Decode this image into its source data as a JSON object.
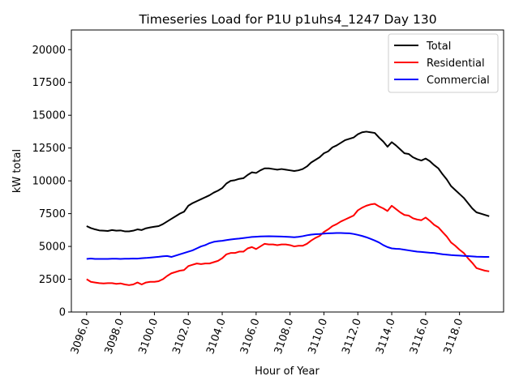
{
  "chart_data": {
    "type": "line",
    "title": "Timeseries Load for P1U p1uhs4_1247  Day 130",
    "xlabel": "Hour of Year",
    "ylabel": "kW total",
    "xlim": [
      3095.1,
      3120.6
    ],
    "ylim": [
      0,
      21500
    ],
    "xticks": [
      3096,
      3098,
      3100,
      3102,
      3104,
      3106,
      3108,
      3110,
      3112,
      3114,
      3116,
      3118
    ],
    "xtick_labels": [
      "3096.0",
      "3098.0",
      "3100.0",
      "3102.0",
      "3104.0",
      "3106.0",
      "3108.0",
      "3110.0",
      "3112.0",
      "3114.0",
      "3116.0",
      "3118.0"
    ],
    "yticks": [
      0,
      2500,
      5000,
      7500,
      10000,
      12500,
      15000,
      17500,
      20000
    ],
    "ytick_labels": [
      "0",
      "2500",
      "5000",
      "7500",
      "10000",
      "12500",
      "15000",
      "17500",
      "20000"
    ],
    "grid": false,
    "legend_position": "top-right",
    "x": [
      3096.0,
      3096.25,
      3096.5,
      3096.75,
      3097.0,
      3097.25,
      3097.5,
      3097.75,
      3098.0,
      3098.25,
      3098.5,
      3098.75,
      3099.0,
      3099.25,
      3099.5,
      3099.75,
      3100.0,
      3100.25,
      3100.5,
      3100.75,
      3101.0,
      3101.25,
      3101.5,
      3101.75,
      3102.0,
      3102.25,
      3102.5,
      3102.75,
      3103.0,
      3103.25,
      3103.5,
      3103.75,
      3104.0,
      3104.25,
      3104.5,
      3104.75,
      3105.0,
      3105.25,
      3105.5,
      3105.75,
      3106.0,
      3106.25,
      3106.5,
      3106.75,
      3107.0,
      3107.25,
      3107.5,
      3107.75,
      3108.0,
      3108.25,
      3108.5,
      3108.75,
      3109.0,
      3109.25,
      3109.5,
      3109.75,
      3110.0,
      3110.25,
      3110.5,
      3110.75,
      3111.0,
      3111.25,
      3111.5,
      3111.75,
      3112.0,
      3112.25,
      3112.5,
      3112.75,
      3113.0,
      3113.25,
      3113.5,
      3113.75,
      3114.0,
      3114.25,
      3114.5,
      3114.75,
      3115.0,
      3115.25,
      3115.5,
      3115.75,
      3116.0,
      3116.25,
      3116.5,
      3116.75,
      3117.0,
      3117.25,
      3117.5,
      3117.75,
      3118.0,
      3118.25,
      3118.5,
      3118.75,
      3119.0,
      3119.25,
      3119.5,
      3119.75
    ],
    "series": [
      {
        "name": "Total",
        "color": "#000000",
        "values": [
          6550,
          6400,
          6300,
          6220,
          6200,
          6180,
          6250,
          6200,
          6220,
          6150,
          6150,
          6200,
          6300,
          6250,
          6380,
          6450,
          6500,
          6550,
          6700,
          6900,
          7100,
          7300,
          7500,
          7650,
          8100,
          8300,
          8450,
          8600,
          8750,
          8900,
          9100,
          9250,
          9450,
          9800,
          10000,
          10050,
          10150,
          10200,
          10450,
          10650,
          10600,
          10800,
          10950,
          10950,
          10900,
          10850,
          10900,
          10850,
          10800,
          10750,
          10800,
          10900,
          11100,
          11400,
          11600,
          11800,
          12100,
          12250,
          12550,
          12700,
          12900,
          13100,
          13200,
          13300,
          13550,
          13700,
          13750,
          13700,
          13650,
          13300,
          13000,
          12600,
          12950,
          12700,
          12400,
          12100,
          12050,
          11800,
          11650,
          11550,
          11700,
          11500,
          11200,
          10950,
          10500,
          10100,
          9600,
          9300,
          9000,
          8700,
          8300,
          7900,
          7600,
          7500,
          7400,
          7300
        ]
      },
      {
        "name": "Residential",
        "color": "#ff0000",
        "values": [
          2500,
          2300,
          2250,
          2200,
          2180,
          2200,
          2200,
          2150,
          2180,
          2100,
          2050,
          2100,
          2250,
          2100,
          2250,
          2300,
          2300,
          2350,
          2500,
          2750,
          2950,
          3050,
          3150,
          3200,
          3500,
          3600,
          3700,
          3650,
          3700,
          3700,
          3800,
          3900,
          4100,
          4400,
          4500,
          4500,
          4600,
          4600,
          4850,
          4950,
          4800,
          5000,
          5200,
          5150,
          5150,
          5100,
          5150,
          5150,
          5100,
          5000,
          5050,
          5050,
          5200,
          5450,
          5650,
          5800,
          6100,
          6300,
          6550,
          6700,
          6900,
          7050,
          7200,
          7350,
          7750,
          7950,
          8100,
          8200,
          8250,
          8050,
          7900,
          7700,
          8100,
          7850,
          7600,
          7400,
          7350,
          7150,
          7050,
          7000,
          7200,
          6950,
          6650,
          6450,
          6100,
          5750,
          5300,
          5050,
          4750,
          4500,
          4100,
          3750,
          3350,
          3250,
          3150,
          3100
        ]
      },
      {
        "name": "Commercial",
        "color": "#0000ff",
        "values": [
          4050,
          4080,
          4050,
          4050,
          4050,
          4050,
          4060,
          4060,
          4050,
          4060,
          4060,
          4080,
          4070,
          4100,
          4120,
          4150,
          4180,
          4210,
          4250,
          4270,
          4200,
          4300,
          4400,
          4500,
          4600,
          4700,
          4850,
          5000,
          5100,
          5250,
          5350,
          5400,
          5430,
          5480,
          5530,
          5570,
          5600,
          5640,
          5680,
          5720,
          5740,
          5760,
          5770,
          5780,
          5770,
          5760,
          5750,
          5740,
          5720,
          5700,
          5730,
          5780,
          5850,
          5900,
          5930,
          5950,
          5980,
          6000,
          6010,
          6020,
          6020,
          6010,
          6000,
          5950,
          5880,
          5800,
          5700,
          5580,
          5450,
          5300,
          5100,
          4950,
          4850,
          4820,
          4800,
          4750,
          4700,
          4650,
          4600,
          4580,
          4550,
          4520,
          4500,
          4450,
          4400,
          4370,
          4340,
          4320,
          4300,
          4280,
          4260,
          4240,
          4220,
          4210,
          4200,
          4200
        ]
      }
    ]
  }
}
